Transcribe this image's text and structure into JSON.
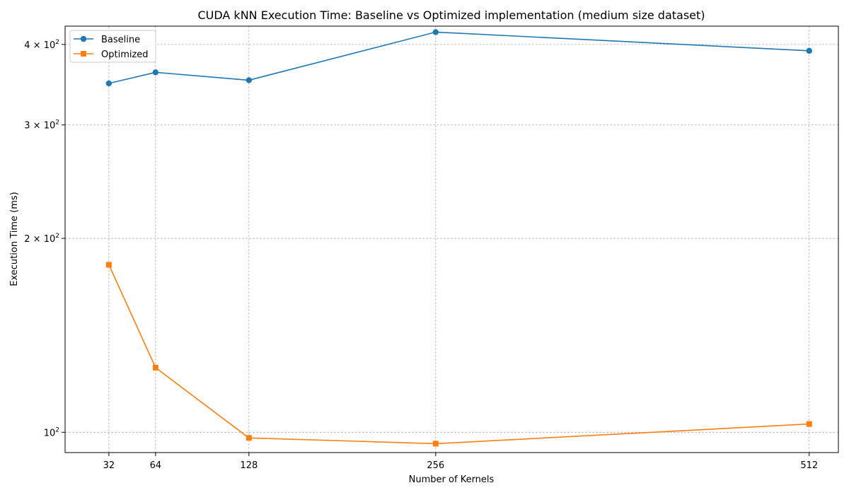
{
  "chart_data": {
    "type": "line",
    "title": "CUDA kNN Execution Time: Baseline vs Optimized implementation (medium size dataset)",
    "xlabel": "Number of Kernels",
    "ylabel": "Execution Time (ms)",
    "x": [
      32,
      64,
      128,
      256,
      512
    ],
    "xticks": [
      "32",
      "64",
      "128",
      "256",
      "512"
    ],
    "xlim": [
      2,
      532
    ],
    "yscale": "log",
    "ylim": [
      93,
      427
    ],
    "yticks": [
      {
        "value": 100,
        "mantissa": "10",
        "exponent": "2"
      },
      {
        "value": 200,
        "mantissa": "2 × 10",
        "exponent": "2"
      },
      {
        "value": 300,
        "mantissa": "3 × 10",
        "exponent": "2"
      },
      {
        "value": 400,
        "mantissa": "4 × 10",
        "exponent": "2"
      }
    ],
    "grid": true,
    "legend_position": "top-left",
    "series": [
      {
        "name": "Baseline",
        "color": "#1f77b4",
        "marker": "circle",
        "values": [
          348,
          362,
          352,
          418,
          391
        ]
      },
      {
        "name": "Optimized",
        "color": "#ff7f0e",
        "marker": "square",
        "values": [
          182,
          126,
          98,
          96,
          103
        ]
      }
    ]
  }
}
